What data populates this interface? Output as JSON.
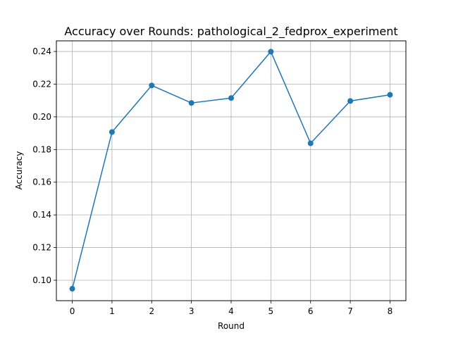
{
  "chart_data": {
    "type": "line",
    "title": "Accuracy over Rounds: pathological_2_fedprox_experiment",
    "xlabel": "Round",
    "ylabel": "Accuracy",
    "x": [
      0,
      1,
      2,
      3,
      4,
      5,
      6,
      7,
      8
    ],
    "series": [
      {
        "values": [
          0.0948,
          0.1907,
          0.2192,
          0.2085,
          0.2115,
          0.2399,
          0.1838,
          0.2097,
          0.2135
        ],
        "color": "#1f77b4",
        "marker": "circle"
      }
    ],
    "xlim": [
      -0.4,
      8.4
    ],
    "ylim": [
      0.0875,
      0.2465
    ],
    "xticks": [
      "0",
      "1",
      "2",
      "3",
      "4",
      "5",
      "6",
      "7",
      "8"
    ],
    "yticks": [
      "0.10",
      "0.12",
      "0.14",
      "0.16",
      "0.18",
      "0.20",
      "0.22",
      "0.24"
    ],
    "grid": true
  }
}
